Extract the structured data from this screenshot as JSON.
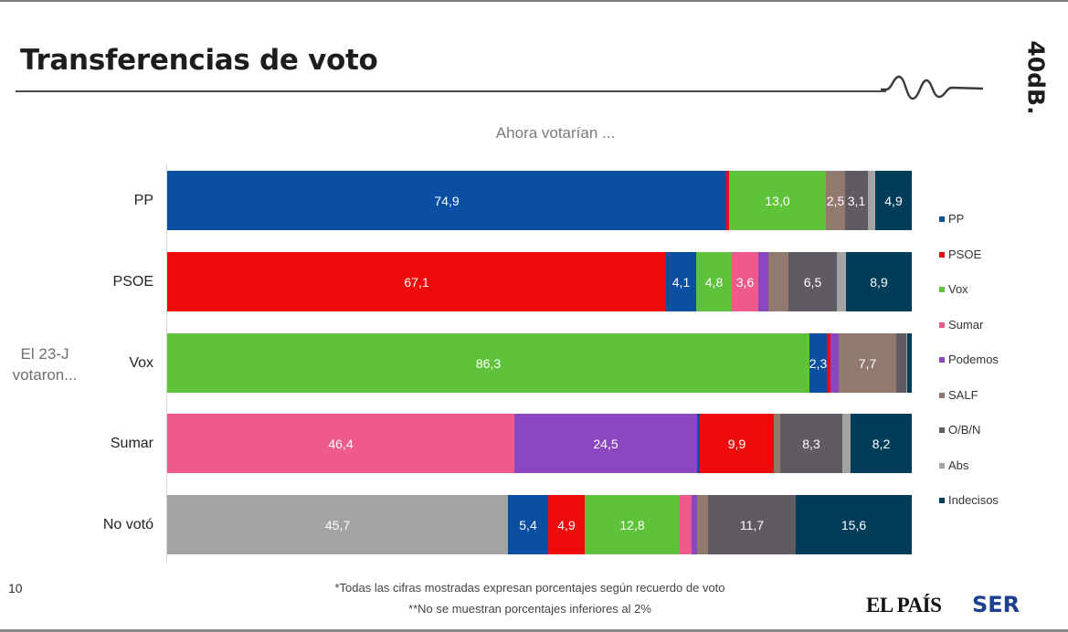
{
  "header": {
    "title": "Transferencias de voto",
    "brand": "40dB."
  },
  "chart_data": {
    "type": "bar",
    "orientation": "horizontal",
    "stacked": true,
    "title": "Transferencias de voto",
    "subtitle": "Ahora votarían ...",
    "ylabel": "El 23-J votaron...",
    "xlim": [
      0,
      100
    ],
    "legend_position": "right",
    "categories": [
      "PP",
      "PSOE",
      "Vox",
      "Sumar",
      "No votó"
    ],
    "series": [
      {
        "name": "PP",
        "color": "#0a4fa1",
        "values": [
          74.9,
          4.1,
          2.3,
          0.3,
          5.4
        ]
      },
      {
        "name": "PSOE",
        "color": "#ee0a0a",
        "values": [
          0.4,
          67.1,
          0.5,
          9.9,
          4.9
        ]
      },
      {
        "name": "Vox",
        "color": "#5ec23b",
        "values": [
          13.0,
          4.8,
          86.3,
          0,
          12.8
        ]
      },
      {
        "name": "Sumar",
        "color": "#ee5a8c",
        "values": [
          0,
          3.6,
          0,
          46.4,
          1.5
        ]
      },
      {
        "name": "Podemos",
        "color": "#8a47c0",
        "values": [
          0,
          1.3,
          1.1,
          24.5,
          0.8
        ]
      },
      {
        "name": "SALF",
        "color": "#927970",
        "values": [
          2.5,
          2.7,
          7.7,
          0.9,
          1.5
        ]
      },
      {
        "name": "O/B/N",
        "color": "#605a63",
        "values": [
          3.1,
          6.5,
          1.4,
          8.3,
          11.7
        ]
      },
      {
        "name": "Abs",
        "color": "#a3a3a3",
        "values": [
          1.0,
          1.2,
          0.1,
          1.1,
          45.7
        ]
      },
      {
        "name": "Indecisos",
        "color": "#003d59",
        "values": [
          4.9,
          8.9,
          0.6,
          8.2,
          15.6
        ]
      }
    ],
    "row_order": [
      [
        "PP",
        "PSOE",
        "Vox",
        "SALF",
        "O/B/N",
        "Abs",
        "Indecisos"
      ],
      [
        "PSOE",
        "PP",
        "Vox",
        "Sumar",
        "Podemos",
        "SALF",
        "O/B/N",
        "Abs",
        "Indecisos"
      ],
      [
        "Vox",
        "PP",
        "PSOE",
        "Podemos",
        "SALF",
        "O/B/N",
        "Abs",
        "Indecisos"
      ],
      [
        "Sumar",
        "Podemos",
        "PP",
        "PSOE",
        "SALF",
        "O/B/N",
        "Abs",
        "Indecisos"
      ],
      [
        "Abs",
        "PP",
        "PSOE",
        "Vox",
        "Sumar",
        "Podemos",
        "SALF",
        "O/B/N",
        "Indecisos"
      ]
    ],
    "data_labels": [
      {
        "PP": "74,9",
        "Vox": "13,0",
        "SALF": "2,5",
        "O/B/N": "3,1",
        "Indecisos": "4,9"
      },
      {
        "PSOE": "67,1",
        "PP": "4,1",
        "Vox": "4,8",
        "Sumar": "3,6",
        "O/B/N": "6,5",
        "Indecisos": "8,9"
      },
      {
        "Vox": "86,3",
        "PP": "2,3",
        "SALF": "7,7"
      },
      {
        "Sumar": "46,4",
        "Podemos": "24,5",
        "PSOE": "9,9",
        "O/B/N": "8,3",
        "Indecisos": "8,2"
      },
      {
        "Abs": "45,7",
        "PP": "5,4",
        "PSOE": "4,9",
        "Vox": "12,8",
        "O/B/N": "11,7",
        "Indecisos": "15,6"
      }
    ]
  },
  "legend": {
    "items": [
      {
        "label": "PP",
        "color": "#0a4fa1"
      },
      {
        "label": "PSOE",
        "color": "#ee0a0a"
      },
      {
        "label": "Vox",
        "color": "#5ec23b"
      },
      {
        "label": "Sumar",
        "color": "#ee5a8c"
      },
      {
        "label": "Podemos",
        "color": "#8a47c0"
      },
      {
        "label": "SALF",
        "color": "#927970"
      },
      {
        "label": "O/B/N",
        "color": "#605a63"
      },
      {
        "label": "Abs",
        "color": "#a3a3a3"
      },
      {
        "label": "Indecisos",
        "color": "#003d59"
      }
    ]
  },
  "side_label": {
    "line1": "El 23-J",
    "line2": "votaron..."
  },
  "footer": {
    "page_number": "10",
    "note1": "*Todas las cifras mostradas expresan porcentajes según recuerdo de voto",
    "note2": "**No se muestran porcentajes inferiores al 2%",
    "logo_elpais": "EL PAÍS",
    "logo_ser": "SER"
  }
}
